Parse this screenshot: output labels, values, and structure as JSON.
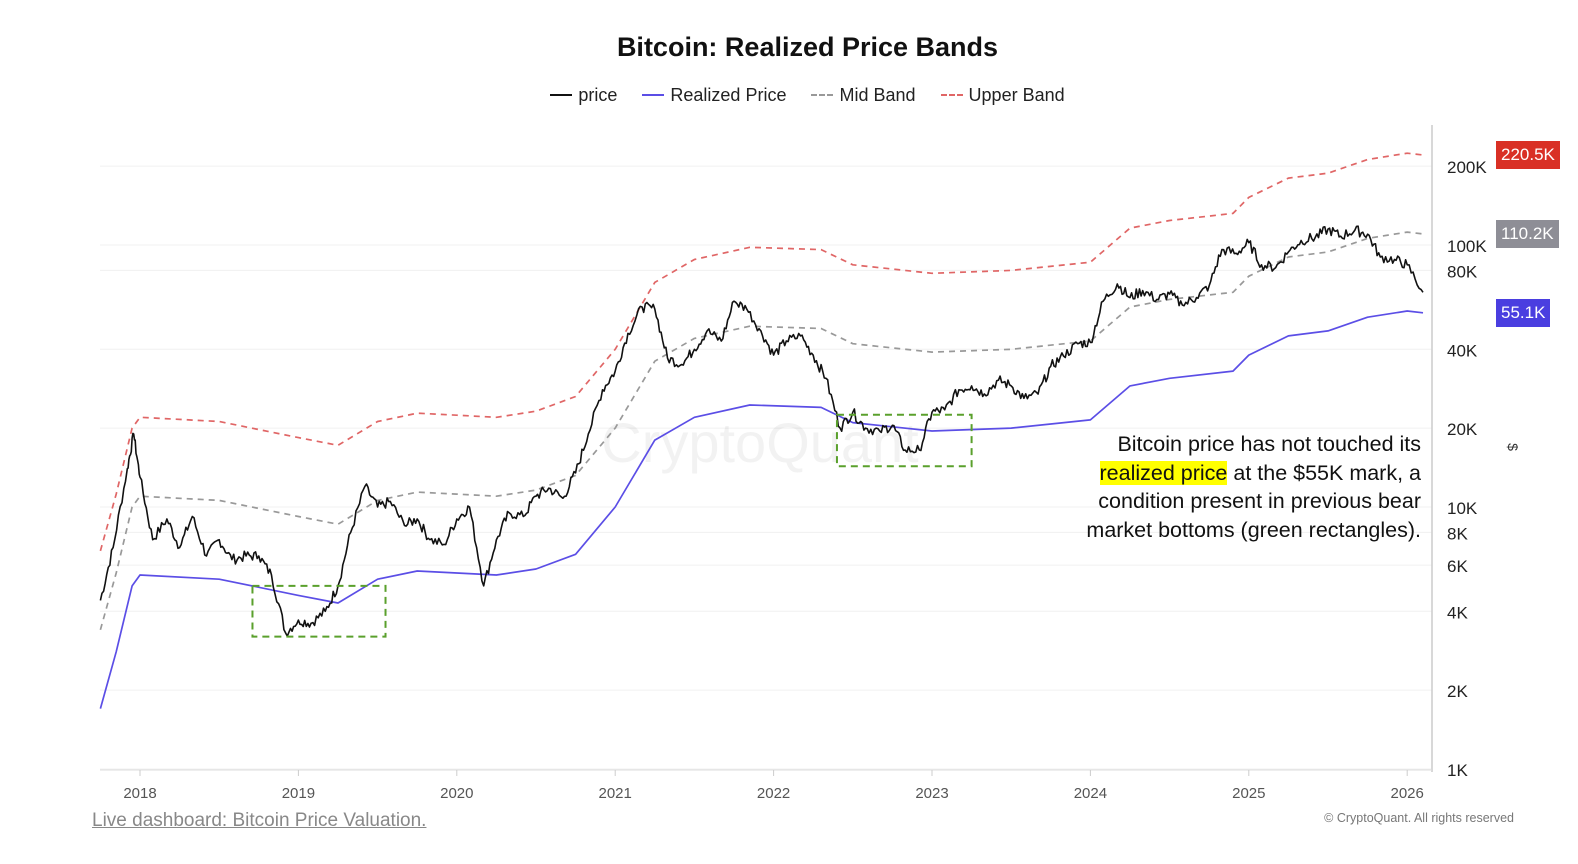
{
  "chart_data": {
    "type": "line",
    "title": "Bitcoin: Realized Price Bands",
    "yscale": "log",
    "ylim": [
      1000,
      300000
    ],
    "xlim": [
      2017.75,
      2026.12
    ],
    "y_ticks": [
      {
        "v": 1000,
        "label": "1K"
      },
      {
        "v": 2000,
        "label": "2K"
      },
      {
        "v": 4000,
        "label": "4K"
      },
      {
        "v": 6000,
        "label": "6K"
      },
      {
        "v": 8000,
        "label": "8K"
      },
      {
        "v": 10000,
        "label": "10K"
      },
      {
        "v": 20000,
        "label": "20K"
      },
      {
        "v": 40000,
        "label": "40K"
      },
      {
        "v": 80000,
        "label": "80K"
      },
      {
        "v": 100000,
        "label": "100K"
      },
      {
        "v": 200000,
        "label": "200K"
      }
    ],
    "x_ticks": [
      2018,
      2019,
      2020,
      2021,
      2022,
      2023,
      2024,
      2025,
      2026
    ],
    "ylabel": "$",
    "grid": "horizontal",
    "legend_placement": "top-center",
    "series": [
      {
        "name": "price",
        "color": "#111111",
        "style": "solid",
        "x": [
          2017.75,
          2017.83,
          2017.92,
          2017.96,
          2018.0,
          2018.08,
          2018.17,
          2018.25,
          2018.33,
          2018.42,
          2018.5,
          2018.58,
          2018.67,
          2018.75,
          2018.83,
          2018.92,
          2019.0,
          2019.08,
          2019.17,
          2019.25,
          2019.33,
          2019.42,
          2019.5,
          2019.58,
          2019.67,
          2019.75,
          2019.83,
          2019.92,
          2020.0,
          2020.08,
          2020.17,
          2020.25,
          2020.33,
          2020.42,
          2020.5,
          2020.58,
          2020.67,
          2020.75,
          2020.83,
          2020.92,
          2021.0,
          2021.08,
          2021.17,
          2021.25,
          2021.33,
          2021.42,
          2021.5,
          2021.58,
          2021.67,
          2021.75,
          2021.83,
          2021.92,
          2022.0,
          2022.08,
          2022.17,
          2022.25,
          2022.33,
          2022.42,
          2022.5,
          2022.58,
          2022.67,
          2022.75,
          2022.83,
          2022.92,
          2023.0,
          2023.08,
          2023.17,
          2023.25,
          2023.33,
          2023.42,
          2023.5,
          2023.58,
          2023.67,
          2023.75,
          2023.83,
          2023.92,
          2024.0,
          2024.08,
          2024.17,
          2024.25,
          2024.33,
          2024.42,
          2024.5,
          2024.58,
          2024.67,
          2024.75,
          2024.83,
          2024.92,
          2025.0,
          2025.08,
          2025.17,
          2025.25,
          2025.33,
          2025.42,
          2025.5,
          2025.58,
          2025.67,
          2025.75,
          2025.83,
          2025.92,
          2026.0,
          2026.1
        ],
        "values": [
          4400,
          7000,
          14000,
          19000,
          13000,
          7500,
          9000,
          7000,
          9200,
          6500,
          7500,
          6300,
          6500,
          6500,
          5500,
          3300,
          3700,
          3600,
          4000,
          5000,
          8000,
          12000,
          10000,
          10500,
          8500,
          9000,
          7500,
          7200,
          9000,
          10000,
          5000,
          7500,
          9500,
          9200,
          11000,
          11800,
          10800,
          13500,
          19000,
          28000,
          33000,
          46000,
          58000,
          57000,
          37000,
          35000,
          40000,
          47000,
          43000,
          61000,
          57000,
          47000,
          38000,
          43000,
          45000,
          38000,
          31000,
          20000,
          23000,
          20000,
          19500,
          20500,
          16500,
          16500,
          23000,
          23500,
          28000,
          29000,
          27000,
          30500,
          29000,
          26000,
          27000,
          34500,
          37700,
          42000,
          42500,
          61000,
          71000,
          63000,
          67000,
          62000,
          65000,
          59000,
          63000,
          70000,
          96000,
          93000,
          102000,
          84000,
          82000,
          94000,
          104000,
          107000,
          115000,
          108000,
          114000,
          110000,
          90000,
          88000,
          84000,
          66000
        ]
      },
      {
        "name": "Realized Price",
        "color": "#5b4ee6",
        "style": "solid",
        "x": [
          2017.75,
          2017.85,
          2017.95,
          2018.0,
          2018.5,
          2019.0,
          2019.25,
          2019.5,
          2019.75,
          2020.0,
          2020.25,
          2020.5,
          2020.75,
          2021.0,
          2021.25,
          2021.5,
          2021.85,
          2022.3,
          2022.5,
          2023.0,
          2023.5,
          2024.0,
          2024.25,
          2024.5,
          2024.9,
          2025.0,
          2025.25,
          2025.5,
          2025.75,
          2026.0,
          2026.1
        ],
        "values": [
          1700,
          2800,
          5000,
          5500,
          5300,
          4600,
          4300,
          5300,
          5700,
          5600,
          5500,
          5800,
          6600,
          10000,
          18000,
          22000,
          24500,
          24000,
          21000,
          19500,
          20000,
          21500,
          29000,
          31000,
          33000,
          38000,
          45000,
          47000,
          53000,
          56000,
          55100
        ]
      },
      {
        "name": "Mid Band",
        "color": "#999999",
        "style": "dashed",
        "x": [
          2017.75,
          2017.85,
          2017.95,
          2018.0,
          2018.5,
          2019.0,
          2019.25,
          2019.5,
          2019.75,
          2020.0,
          2020.25,
          2020.5,
          2020.75,
          2021.0,
          2021.25,
          2021.5,
          2021.85,
          2022.3,
          2022.5,
          2023.0,
          2023.5,
          2024.0,
          2024.25,
          2024.5,
          2024.9,
          2025.0,
          2025.25,
          2025.5,
          2025.75,
          2026.0,
          2026.1
        ],
        "values": [
          3400,
          5600,
          10000,
          11000,
          10600,
          9200,
          8600,
          10600,
          11400,
          11200,
          11000,
          11600,
          13200,
          20000,
          36000,
          44000,
          49000,
          48000,
          42000,
          39000,
          40000,
          43000,
          58000,
          62000,
          66000,
          76000,
          90000,
          94000,
          106000,
          112000,
          110200
        ]
      },
      {
        "name": "Upper Band",
        "color": "#e06666",
        "style": "dashed",
        "x": [
          2017.75,
          2017.85,
          2017.95,
          2018.0,
          2018.5,
          2019.0,
          2019.25,
          2019.5,
          2019.75,
          2020.0,
          2020.25,
          2020.5,
          2020.75,
          2021.0,
          2021.25,
          2021.5,
          2021.85,
          2022.3,
          2022.5,
          2023.0,
          2023.5,
          2024.0,
          2024.25,
          2024.5,
          2024.9,
          2025.0,
          2025.25,
          2025.5,
          2025.75,
          2026.0,
          2026.1
        ],
        "values": [
          6800,
          11200,
          20000,
          22000,
          21200,
          18400,
          17200,
          21200,
          22800,
          22400,
          22000,
          23200,
          26400,
          40000,
          72000,
          88000,
          98000,
          96000,
          84000,
          78000,
          80000,
          86000,
          116000,
          124000,
          132000,
          152000,
          180000,
          188000,
          212000,
          224000,
          220500
        ]
      }
    ],
    "last_value_badges": [
      {
        "label": "220.5K",
        "value": 220500,
        "color": "#d93025"
      },
      {
        "label": "110.2K",
        "value": 110200,
        "color": "#8e8e96"
      },
      {
        "label": "55.1K",
        "value": 55100,
        "color": "#4a3ee0"
      }
    ],
    "highlight_rects": [
      {
        "x": [
          2018.71,
          2019.55
        ],
        "y": [
          3200,
          5000
        ],
        "color": "#5aa02c"
      },
      {
        "x": [
          2022.4,
          2023.25
        ],
        "y": [
          14300,
          22500
        ],
        "color": "#5aa02c"
      }
    ],
    "watermark": "CryptoQuant"
  },
  "annotation": {
    "line1": "Bitcoin price has not touched its",
    "highlight": "realized price",
    "line2_rest": " at the $55K mark, a",
    "line3": "condition present in previous bear",
    "line4": "market bottoms (green rectangles).",
    "highlight_color": "#ffff00"
  },
  "footer": {
    "link": "Live dashboard: Bitcoin Price Valuation.",
    "copyright": "© CryptoQuant. All rights reserved"
  }
}
